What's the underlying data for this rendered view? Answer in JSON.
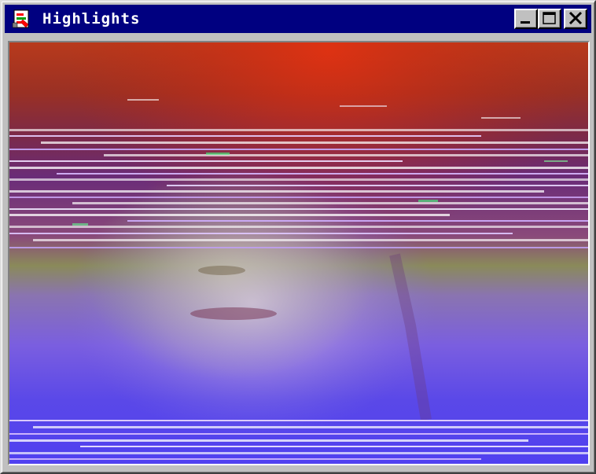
{
  "window": {
    "title": "Highlights",
    "icon": "app-document-icon"
  },
  "controls": {
    "minimize": "minimize-icon",
    "maximize": "maximize-icon",
    "close": "close-icon"
  },
  "video": {
    "content": "static-distorted-face-frame"
  },
  "colors": {
    "titlebar": "#000080",
    "chrome": "#c0c0c0",
    "desktop": "#008080"
  }
}
